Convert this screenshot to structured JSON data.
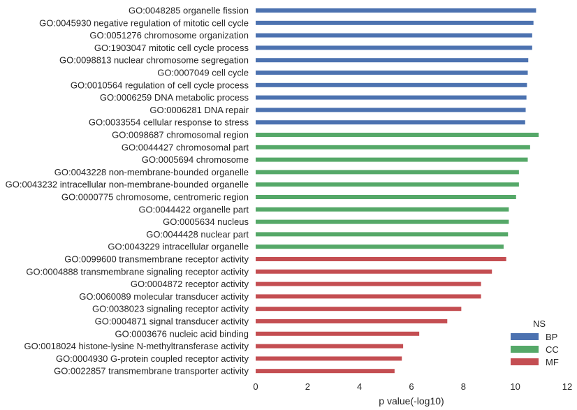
{
  "chart_data": {
    "type": "bar",
    "orientation": "horizontal",
    "xlabel": "p value(-log10)",
    "ylabel": "",
    "xlim": [
      0,
      12
    ],
    "xticks": [
      0,
      2,
      4,
      6,
      8,
      10,
      12
    ],
    "grid": false,
    "legend": {
      "title": "NS",
      "placement": "bottom-right",
      "entries": [
        {
          "name": "BP",
          "color": "#4c72b0"
        },
        {
          "name": "CC",
          "color": "#55a868"
        },
        {
          "name": "MF",
          "color": "#c44e52"
        }
      ]
    },
    "categories": [
      "GO:0048285 organelle fission",
      "GO:0045930 negative regulation of mitotic cell cycle",
      "GO:0051276 chromosome organization",
      "GO:1903047 mitotic cell cycle process",
      "GO:0098813 nuclear chromosome segregation",
      "GO:0007049 cell cycle",
      "GO:0010564 regulation of cell cycle process",
      "GO:0006259 DNA metabolic process",
      "GO:0006281 DNA repair",
      "GO:0033554 cellular response to stress",
      "GO:0098687 chromosomal region",
      "GO:0044427 chromosomal part",
      "GO:0005694 chromosome",
      "GO:0043228 non-membrane-bounded organelle",
      "GO:0043232 intracellular non-membrane-bounded organelle",
      "GO:0000775 chromosome, centromeric region",
      "GO:0044422 organelle part",
      "GO:0005634 nucleus",
      "GO:0044428 nuclear part",
      "GO:0043229 intracellular organelle",
      "GO:0099600 transmembrane receptor activity",
      "GO:0004888 transmembrane signaling receptor activity",
      "GO:0004872 receptor activity",
      "GO:0060089 molecular transducer activity",
      "GO:0038023 signaling receptor activity",
      "GO:0004871 signal transducer activity",
      "GO:0003676 nucleic acid binding",
      "GO:0018024 histone-lysine N-methyltransferase activity",
      "GO:0004930 G-protein coupled receptor activity",
      "GO:0022857 transmembrane transporter activity"
    ],
    "groups": [
      "BP",
      "BP",
      "BP",
      "BP",
      "BP",
      "BP",
      "BP",
      "BP",
      "BP",
      "BP",
      "CC",
      "CC",
      "CC",
      "CC",
      "CC",
      "CC",
      "CC",
      "CC",
      "CC",
      "CC",
      "MF",
      "MF",
      "MF",
      "MF",
      "MF",
      "MF",
      "MF",
      "MF",
      "MF",
      "MF"
    ],
    "values": [
      10.8,
      10.7,
      10.65,
      10.65,
      10.5,
      10.48,
      10.45,
      10.43,
      10.4,
      10.38,
      10.9,
      10.57,
      10.48,
      10.14,
      10.14,
      10.03,
      9.75,
      9.75,
      9.72,
      9.55,
      9.65,
      9.1,
      8.68,
      8.68,
      7.92,
      7.38,
      6.3,
      5.68,
      5.63,
      5.35
    ]
  }
}
